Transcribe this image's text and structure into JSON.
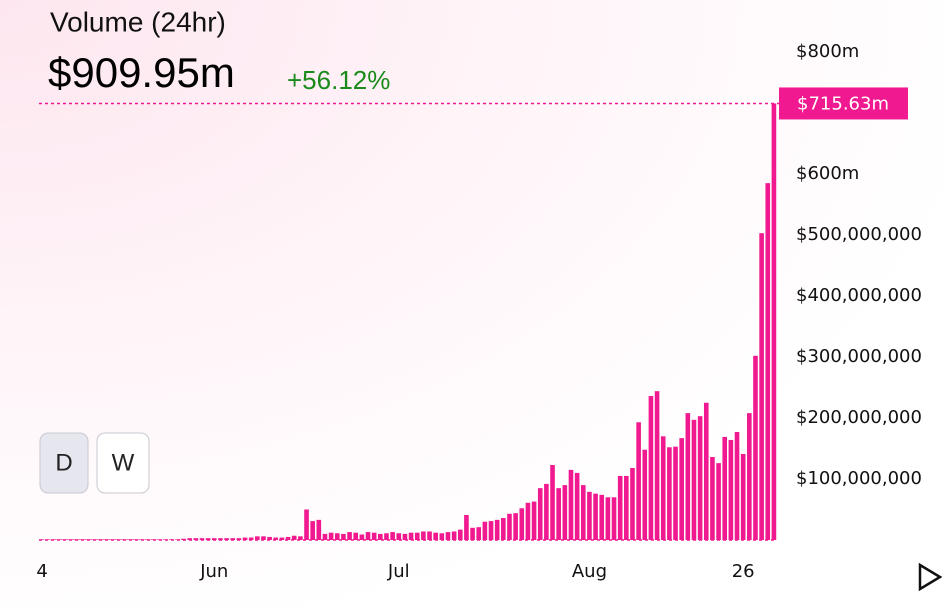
{
  "chart_data": {
    "type": "bar",
    "title": "Volume (24hr)",
    "headline_value": "$909.95m",
    "change": "+56.12%",
    "current_label": "$715.63m",
    "buttons": [
      "D",
      "W"
    ],
    "color": "#f0198f",
    "categories": [
      "4",
      null,
      null,
      null,
      null,
      null,
      null,
      null,
      null,
      null,
      null,
      null,
      null,
      null,
      null,
      null,
      null,
      null,
      null,
      null,
      null,
      null,
      null,
      null,
      null,
      null,
      null,
      null,
      "Jun",
      null,
      null,
      null,
      null,
      null,
      null,
      null,
      null,
      null,
      null,
      null,
      null,
      null,
      null,
      null,
      null,
      null,
      null,
      null,
      null,
      null,
      null,
      null,
      null,
      null,
      null,
      null,
      null,
      null,
      "Jul",
      null,
      null,
      null,
      null,
      null,
      null,
      null,
      null,
      null,
      null,
      null,
      null,
      null,
      null,
      null,
      null,
      null,
      null,
      null,
      null,
      null,
      null,
      null,
      null,
      null,
      null,
      null,
      null,
      null,
      null,
      "Aug",
      null,
      null,
      null,
      null,
      null,
      null,
      null,
      null,
      null,
      null,
      null,
      null,
      null,
      null,
      null,
      null,
      null,
      null,
      null,
      null,
      null,
      null,
      null,
      null,
      "26",
      null,
      null,
      null,
      null,
      null
    ],
    "values": [
      1000000,
      1000000,
      1000000,
      1000000,
      1000000,
      1000000,
      1000000,
      1000000,
      1000000,
      1000000,
      1000000,
      1000000,
      1000000,
      1000000,
      1000000,
      1000000,
      1000000,
      1000000,
      1000000,
      1000000,
      1000000,
      1000000,
      1000000,
      2000000,
      3000000,
      3000000,
      3000000,
      3000000,
      3000000,
      3000000,
      3000000,
      3000000,
      3000000,
      4000000,
      4000000,
      6000000,
      6000000,
      5000000,
      4000000,
      4000000,
      5000000,
      7000000,
      6000000,
      50000000,
      31000000,
      33000000,
      10000000,
      12000000,
      11000000,
      10000000,
      13000000,
      12000000,
      9000000,
      13000000,
      12000000,
      10000000,
      11000000,
      13000000,
      11000000,
      10000000,
      12000000,
      12000000,
      14000000,
      14000000,
      12000000,
      11000000,
      13000000,
      14000000,
      17000000,
      41000000,
      20000000,
      21000000,
      30000000,
      31000000,
      33000000,
      36000000,
      43000000,
      44000000,
      52000000,
      61000000,
      63000000,
      85000000,
      92000000,
      123000000,
      85000000,
      90000000,
      115000000,
      110000000,
      90000000,
      79000000,
      76000000,
      74000000,
      70000000,
      70000000,
      105000000,
      105000000,
      118000000,
      193000000,
      148000000,
      236000000,
      244000000,
      170000000,
      152000000,
      153000000,
      167000000,
      208000000,
      197000000,
      203000000,
      225000000,
      136000000,
      126000000,
      169000000,
      164000000,
      177000000,
      141000000,
      208000000,
      302000000,
      503000000,
      585000000,
      715630000
    ],
    "ylim": [
      0,
      800000000
    ],
    "yticks": [
      {
        "value": 100000000,
        "label": "$100,000,000"
      },
      {
        "value": 200000000,
        "label": "$200,000,000"
      },
      {
        "value": 300000000,
        "label": "$300,000,000"
      },
      {
        "value": 400000000,
        "label": "$400,000,000"
      },
      {
        "value": 500000000,
        "label": "$500,000,000"
      },
      {
        "value": 600000000,
        "label": "$600m"
      },
      {
        "value": 800000000,
        "label": "$800m"
      }
    ]
  }
}
